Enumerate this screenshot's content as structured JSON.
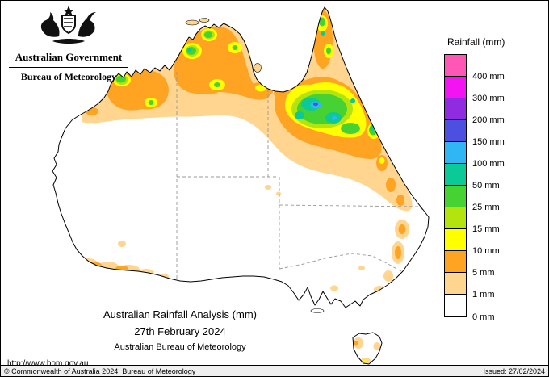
{
  "header": {
    "gov_title": "Australian Government",
    "bureau_title": "Bureau of Meteorology"
  },
  "legend": {
    "title": "Rainfall (mm)",
    "items": [
      {
        "label": "400 mm",
        "color": "#ff57b5"
      },
      {
        "label": "300 mm",
        "color": "#f313f3"
      },
      {
        "label": "200 mm",
        "color": "#8f2be0"
      },
      {
        "label": "150 mm",
        "color": "#4d4fe0"
      },
      {
        "label": "100 mm",
        "color": "#30b6f5"
      },
      {
        "label": "50 mm",
        "color": "#0cc998"
      },
      {
        "label": "25 mm",
        "color": "#46d233"
      },
      {
        "label": "15 mm",
        "color": "#b4e40e"
      },
      {
        "label": "10 mm",
        "color": "#ffff00"
      },
      {
        "label": "5 mm",
        "color": "#ffa322"
      },
      {
        "label": "1 mm",
        "color": "#ffd590"
      },
      {
        "label": "0 mm",
        "color": "#ffffff"
      }
    ]
  },
  "caption": {
    "line1": "Australian Rainfall Analysis (mm)",
    "line2": "27th February 2024",
    "line3": "Australian Bureau of Meteorology"
  },
  "links": {
    "url": "http://www.bom.gov.au"
  },
  "footer": {
    "copyright": "© Commonwealth of Australia 2024, Bureau of Meteorology",
    "issued": "Issued: 27/02/2024"
  }
}
